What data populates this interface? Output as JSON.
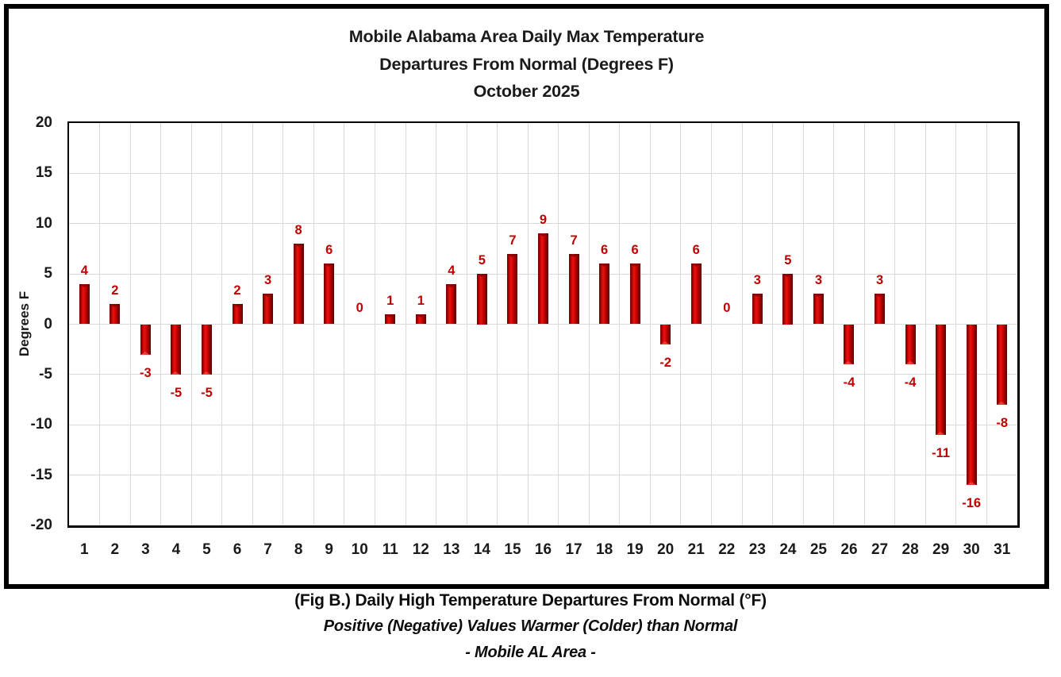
{
  "title": {
    "line1": "Mobile Alabama Area Daily Max Temperature",
    "line2": "Departures From Normal (Degrees F)",
    "line3": "October 2025"
  },
  "y_axis": {
    "label": "Degrees F",
    "ticks": [
      20,
      15,
      10,
      5,
      0,
      -5,
      -10,
      -15,
      -20
    ]
  },
  "caption": {
    "line1": "(Fig B.) Daily High Temperature Departures From Normal (°F)",
    "line2": "Positive (Negative) Values Warmer (Colder) than Normal",
    "line3": "- Mobile AL Area -"
  },
  "colors": {
    "data_label": "#C00000",
    "grid": "#D9D9D9",
    "axis": "#000000",
    "bar_dark_edge": "#6B0000",
    "bar_highlight": "#EE1111",
    "bar_main": "#C00000"
  },
  "chart_data": {
    "type": "bar",
    "title": "Mobile Alabama Area Daily Max Temperature Departures From Normal (Degrees F) October 2025",
    "xlabel": "",
    "ylabel": "Degrees F",
    "ylim": [
      -20,
      20
    ],
    "ytick_step": 5,
    "grid": true,
    "legend": false,
    "categories": [
      1,
      2,
      3,
      4,
      5,
      6,
      7,
      8,
      9,
      10,
      11,
      12,
      13,
      14,
      15,
      16,
      17,
      18,
      19,
      20,
      21,
      22,
      23,
      24,
      25,
      26,
      27,
      28,
      29,
      30,
      31
    ],
    "values": [
      4,
      2,
      -3,
      -5,
      -5,
      2,
      3,
      8,
      6,
      0,
      1,
      1,
      4,
      5,
      7,
      9,
      7,
      6,
      6,
      -2,
      6,
      0,
      3,
      5,
      3,
      -4,
      3,
      -4,
      -11,
      -16,
      -8
    ]
  }
}
